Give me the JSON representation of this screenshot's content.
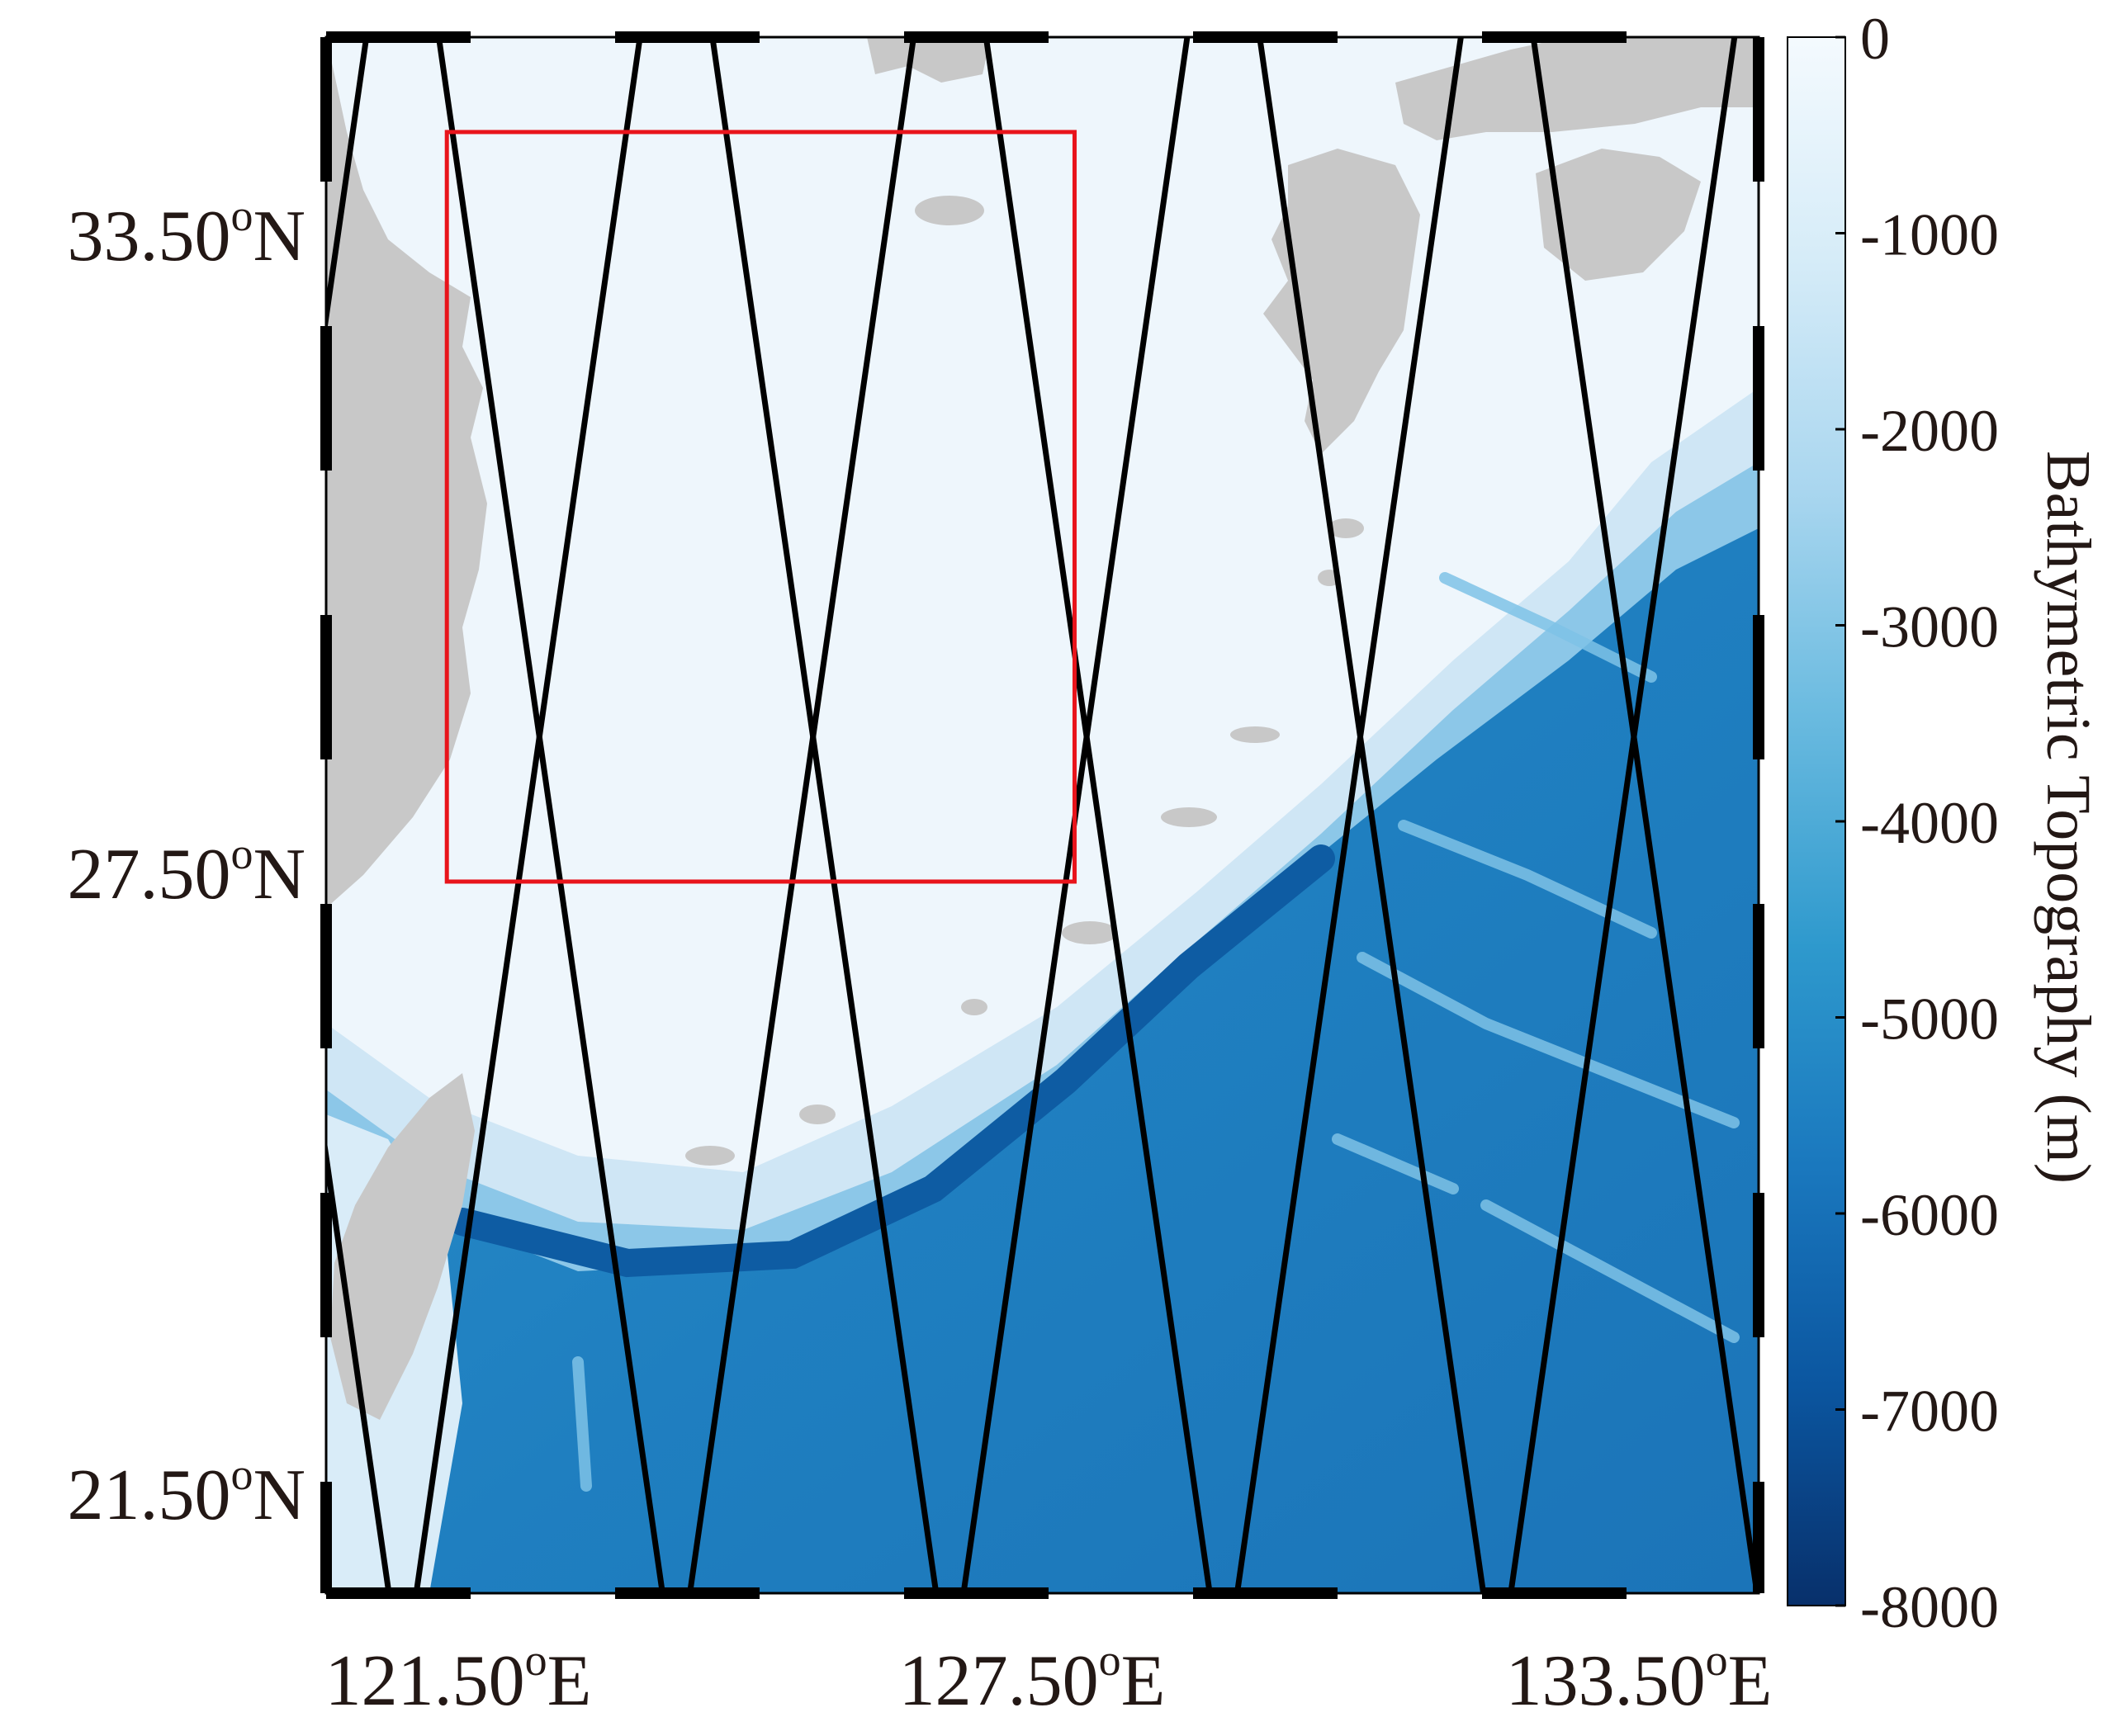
{
  "map": {
    "lon_range": [
      119.5,
      137.3
    ],
    "lat_range": [
      19.8,
      36.2
    ],
    "lat_labels": [
      {
        "lat": 33.5,
        "text": "33.50",
        "sup": "o",
        "hemi": "N"
      },
      {
        "lat": 27.5,
        "text": "27.50",
        "sup": "o",
        "hemi": "N"
      },
      {
        "lat": 21.5,
        "text": "21.50",
        "sup": "o",
        "hemi": "N"
      }
    ],
    "lon_labels": [
      {
        "lon": 121.5,
        "text": "121.50",
        "sup": "o",
        "hemi": "E"
      },
      {
        "lon": 127.5,
        "text": "127.50",
        "sup": "o",
        "hemi": "E"
      },
      {
        "lon": 133.5,
        "text": "133.50",
        "sup": "o",
        "hemi": "E"
      }
    ],
    "study_region": {
      "lon_min": 121.0,
      "lon_max": 128.8,
      "lat_min": 27.3,
      "lat_max": 35.2,
      "color": "#e8141b"
    },
    "tracks": {
      "color": "#000000",
      "ascending_anchor_lons_at_top": [
        117.5,
        120.9,
        124.3,
        127.7,
        131.1,
        134.5,
        137.9,
        141.3,
        144.7
      ],
      "descending_anchor_lons_at_top": [
        120.0,
        123.4,
        126.8,
        130.2,
        133.6,
        137.0
      ],
      "lon_shift_per_deg_lat": 0.1695
    },
    "land_color": "#c8c8c8",
    "ocean_colors": {
      "shallow": "#eff6fc",
      "mid": "#2b97cf",
      "deep": "#1765ad"
    }
  },
  "colorbar": {
    "label": "Bathymetric Topography (m)",
    "ticks": [
      "0",
      "-1000",
      "-2000",
      "-3000",
      "-4000",
      "-5000",
      "-6000",
      "-7000",
      "-8000"
    ],
    "range": [
      -8000,
      0
    ],
    "colors": [
      "#08306b",
      "#0b56a0",
      "#1a78be",
      "#2e99cd",
      "#6bbbe0",
      "#a9d6ef",
      "#d6ecf8",
      "#f4fafe"
    ]
  }
}
